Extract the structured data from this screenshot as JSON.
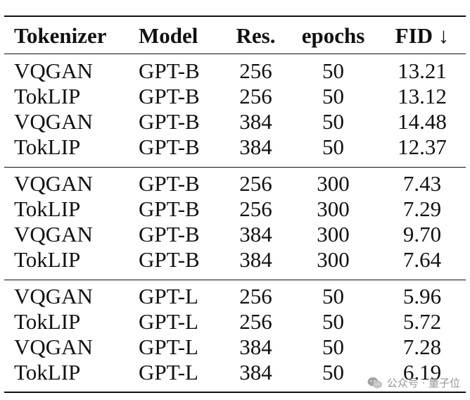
{
  "table": {
    "headers": [
      "Tokenizer",
      "Model",
      "Res.",
      "epochs",
      "FID ↓"
    ],
    "groups": [
      {
        "rows": [
          [
            "VQGAN",
            "GPT-B",
            "256",
            "50",
            "13.21"
          ],
          [
            "TokLIP",
            "GPT-B",
            "256",
            "50",
            "13.12"
          ],
          [
            "VQGAN",
            "GPT-B",
            "384",
            "50",
            "14.48"
          ],
          [
            "TokLIP",
            "GPT-B",
            "384",
            "50",
            "12.37"
          ]
        ]
      },
      {
        "rows": [
          [
            "VQGAN",
            "GPT-B",
            "256",
            "300",
            "7.43"
          ],
          [
            "TokLIP",
            "GPT-B",
            "256",
            "300",
            "7.29"
          ],
          [
            "VQGAN",
            "GPT-B",
            "384",
            "300",
            "9.70"
          ],
          [
            "TokLIP",
            "GPT-B",
            "384",
            "300",
            "7.64"
          ]
        ]
      },
      {
        "rows": [
          [
            "VQGAN",
            "GPT-L",
            "256",
            "50",
            "5.96"
          ],
          [
            "TokLIP",
            "GPT-L",
            "256",
            "50",
            "5.72"
          ],
          [
            "VQGAN",
            "GPT-L",
            "384",
            "50",
            "7.28"
          ],
          [
            "TokLIP",
            "GPT-L",
            "384",
            "50",
            "6.19"
          ]
        ]
      }
    ]
  },
  "watermark": {
    "text": "公众号 · 量子位",
    "icon": "wechat-icon"
  }
}
